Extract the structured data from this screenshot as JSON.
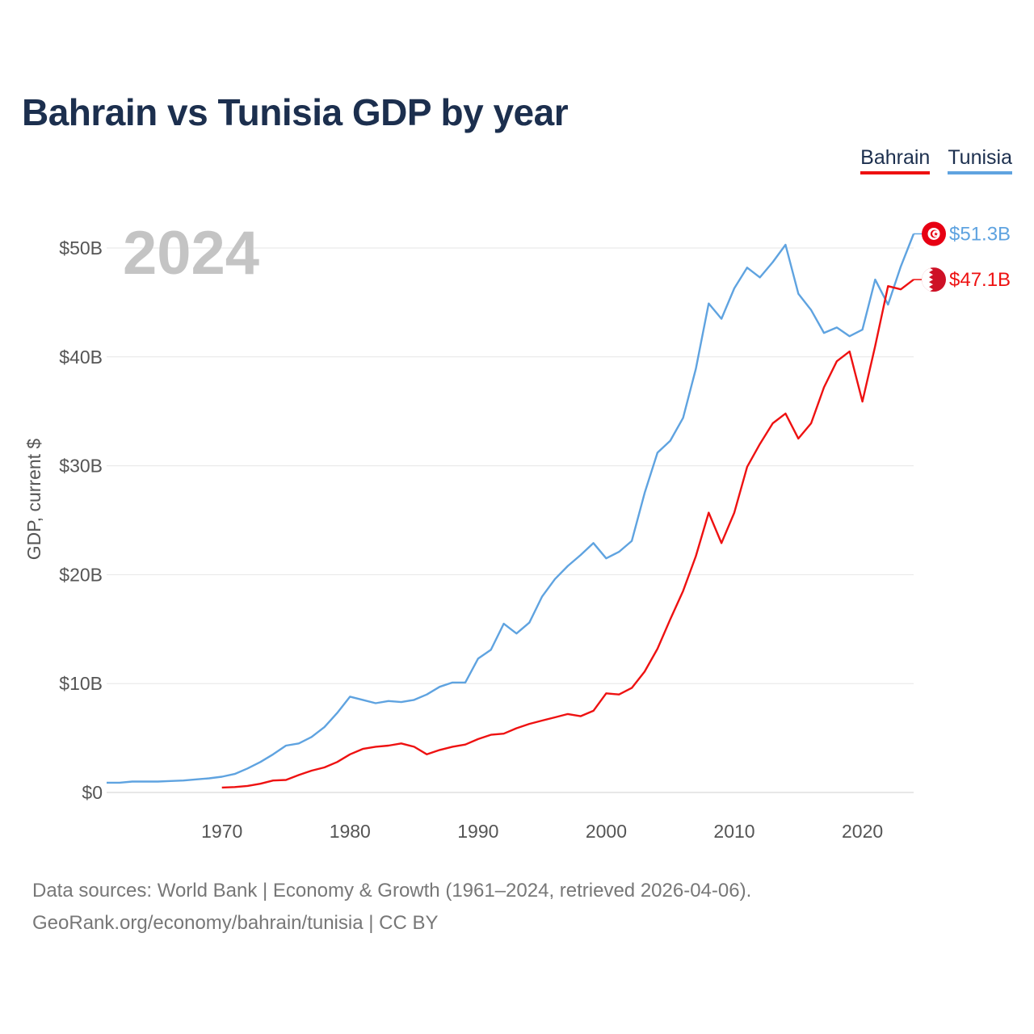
{
  "title": "Bahrain vs Tunisia GDP by year",
  "legend": [
    {
      "name": "Bahrain",
      "color": "#ee1111"
    },
    {
      "name": "Tunisia",
      "color": "#5fa3e0"
    }
  ],
  "source": {
    "line1": "Data sources: World Bank | Economy & Growth (1961–2024, retrieved 2026-04-06).",
    "line2": "GeoRank.org/economy/bahrain/tunisia | CC BY"
  },
  "chart_data": {
    "type": "line",
    "title": "Bahrain vs Tunisia GDP by year",
    "xlabel": "",
    "ylabel": "GDP, current $",
    "xlim": [
      1961,
      2024
    ],
    "ylim": [
      0,
      52
    ],
    "y_unit": "billion USD",
    "x_ticks": [
      1970,
      1980,
      1990,
      2000,
      2010,
      2020
    ],
    "y_ticks": [
      0,
      10,
      20,
      30,
      40,
      50
    ],
    "y_tick_labels": [
      "$0",
      "$10B",
      "$20B",
      "$30B",
      "$40B",
      "$50B"
    ],
    "grid": true,
    "highlight_year": "2024",
    "series": [
      {
        "name": "Tunisia",
        "color": "#5fa3e0",
        "end_label": "$51.3B",
        "x": [
          1961,
          1962,
          1963,
          1964,
          1965,
          1966,
          1967,
          1968,
          1969,
          1970,
          1971,
          1972,
          1973,
          1974,
          1975,
          1976,
          1977,
          1978,
          1979,
          1980,
          1981,
          1982,
          1983,
          1984,
          1985,
          1986,
          1987,
          1988,
          1989,
          1990,
          1991,
          1992,
          1993,
          1994,
          1995,
          1996,
          1997,
          1998,
          1999,
          2000,
          2001,
          2002,
          2003,
          2004,
          2005,
          2006,
          2007,
          2008,
          2009,
          2010,
          2011,
          2012,
          2013,
          2014,
          2015,
          2016,
          2017,
          2018,
          2019,
          2020,
          2021,
          2022,
          2023,
          2024
        ],
        "values": [
          0.9,
          0.9,
          1.0,
          1.0,
          1.0,
          1.05,
          1.1,
          1.2,
          1.3,
          1.45,
          1.7,
          2.2,
          2.8,
          3.5,
          4.3,
          4.5,
          5.1,
          6.0,
          7.3,
          8.8,
          8.5,
          8.2,
          8.4,
          8.3,
          8.5,
          9.0,
          9.7,
          10.1,
          10.1,
          12.3,
          13.1,
          15.5,
          14.6,
          15.6,
          18.0,
          19.6,
          20.8,
          21.8,
          22.9,
          21.5,
          22.1,
          23.1,
          27.5,
          31.2,
          32.3,
          34.4,
          38.9,
          44.9,
          43.5,
          46.3,
          48.2,
          47.3,
          48.7,
          50.3,
          45.8,
          44.3,
          42.2,
          42.7,
          41.9,
          42.5,
          47.1,
          44.8,
          48.3,
          51.3
        ]
      },
      {
        "name": "Bahrain",
        "color": "#ee1111",
        "end_label": "$47.1B",
        "x": [
          1970,
          1971,
          1972,
          1973,
          1974,
          1975,
          1976,
          1977,
          1978,
          1979,
          1980,
          1981,
          1982,
          1983,
          1984,
          1985,
          1986,
          1987,
          1988,
          1989,
          1990,
          1991,
          1992,
          1993,
          1994,
          1995,
          1996,
          1997,
          1998,
          1999,
          2000,
          2001,
          2002,
          2003,
          2004,
          2005,
          2006,
          2007,
          2008,
          2009,
          2010,
          2011,
          2012,
          2013,
          2014,
          2015,
          2016,
          2017,
          2018,
          2019,
          2020,
          2021,
          2022,
          2023,
          2024
        ],
        "values": [
          0.45,
          0.5,
          0.6,
          0.8,
          1.1,
          1.15,
          1.6,
          2.0,
          2.3,
          2.8,
          3.5,
          4.0,
          4.2,
          4.3,
          4.5,
          4.2,
          3.5,
          3.9,
          4.2,
          4.4,
          4.9,
          5.3,
          5.4,
          5.9,
          6.3,
          6.6,
          6.9,
          7.2,
          7.0,
          7.5,
          9.1,
          9.0,
          9.6,
          11.1,
          13.2,
          15.9,
          18.5,
          21.7,
          25.7,
          22.9,
          25.7,
          29.9,
          32.0,
          33.9,
          34.8,
          32.5,
          33.9,
          37.2,
          39.6,
          40.5,
          35.9,
          41.0,
          46.5,
          46.2,
          47.1
        ]
      }
    ]
  }
}
